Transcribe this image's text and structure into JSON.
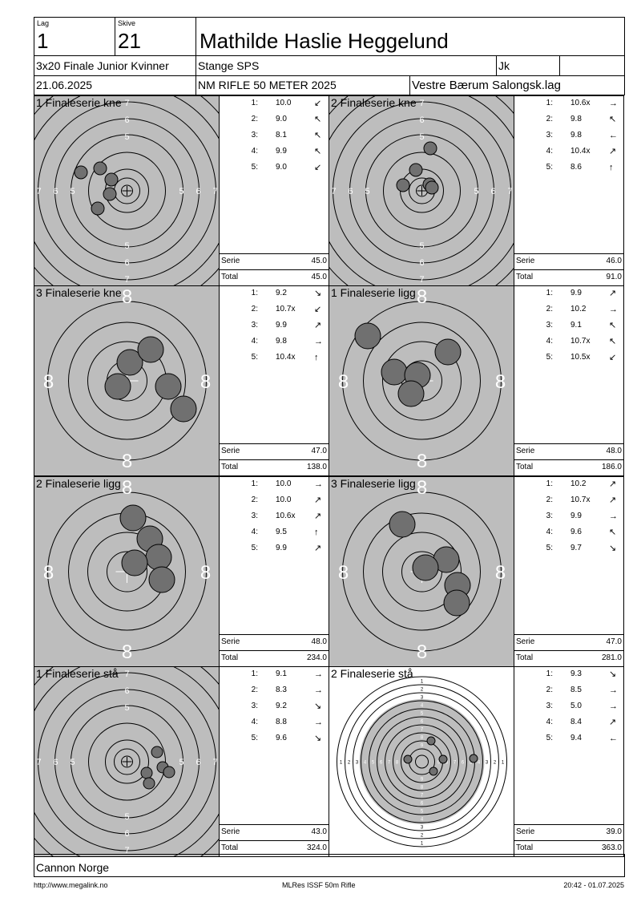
{
  "header": {
    "lag_label": "Lag",
    "lag_value": "1",
    "skive_label": "Skive",
    "skive_value": "21",
    "shooter_name": "Mathilde Haslie Heggelund",
    "event": "3x20 Finale Junior Kvinner",
    "club": "Stange SPS",
    "class": "Jk",
    "date": "21.06.2025",
    "competition": "NM RIFLE 50 METER 2025",
    "organizer": "Vestre Bærum Salongsk.lag"
  },
  "panels": [
    {
      "title": "1 Finaleserie kne",
      "target": "wide",
      "shots": [
        {
          "n": "1:",
          "v": "10.0",
          "a": "↙"
        },
        {
          "n": "2:",
          "v": "9.0",
          "a": "↖"
        },
        {
          "n": "3:",
          "v": "8.1",
          "a": "↖"
        },
        {
          "n": "4:",
          "v": "9.9",
          "a": "↖"
        },
        {
          "n": "5:",
          "v": "9.0",
          "a": "↙"
        }
      ],
      "serie_label": "Serie",
      "serie": "45.0",
      "total_label": "Total",
      "total": "45.0"
    },
    {
      "title": "2 Finaleserie kne",
      "target": "wide",
      "shots": [
        {
          "n": "1:",
          "v": "10.6x",
          "a": "→"
        },
        {
          "n": "2:",
          "v": "9.8",
          "a": "↖"
        },
        {
          "n": "3:",
          "v": "9.8",
          "a": "←"
        },
        {
          "n": "4:",
          "v": "10.4x",
          "a": "↗"
        },
        {
          "n": "5:",
          "v": "8.6",
          "a": "↑"
        }
      ],
      "serie_label": "Serie",
      "serie": "46.0",
      "total_label": "Total",
      "total": "91.0"
    },
    {
      "title": "3 Finaleserie kne",
      "target": "zoom",
      "shots": [
        {
          "n": "1:",
          "v": "9.2",
          "a": "↘"
        },
        {
          "n": "2:",
          "v": "10.7x",
          "a": "↙"
        },
        {
          "n": "3:",
          "v": "9.9",
          "a": "↗"
        },
        {
          "n": "4:",
          "v": "9.8",
          "a": "→"
        },
        {
          "n": "5:",
          "v": "10.4x",
          "a": "↑"
        }
      ],
      "serie_label": "Serie",
      "serie": "47.0",
      "total_label": "Total",
      "total": "138.0"
    },
    {
      "title": "1 Finaleserie ligg",
      "target": "zoom",
      "shots": [
        {
          "n": "1:",
          "v": "9.9",
          "a": "↗"
        },
        {
          "n": "2:",
          "v": "10.2",
          "a": "→"
        },
        {
          "n": "3:",
          "v": "9.1",
          "a": "↖"
        },
        {
          "n": "4:",
          "v": "10.7x",
          "a": "↖"
        },
        {
          "n": "5:",
          "v": "10.5x",
          "a": "↙"
        }
      ],
      "serie_label": "Serie",
      "serie": "48.0",
      "total_label": "Total",
      "total": "186.0"
    },
    {
      "title": "2 Finaleserie ligg",
      "target": "zoom",
      "shots": [
        {
          "n": "1:",
          "v": "10.0",
          "a": "→"
        },
        {
          "n": "2:",
          "v": "10.0",
          "a": "↗"
        },
        {
          "n": "3:",
          "v": "10.6x",
          "a": "↗"
        },
        {
          "n": "4:",
          "v": "9.5",
          "a": "↑"
        },
        {
          "n": "5:",
          "v": "9.9",
          "a": "↗"
        }
      ],
      "serie_label": "Serie",
      "serie": "48.0",
      "total_label": "Total",
      "total": "234.0"
    },
    {
      "title": "3 Finaleserie ligg",
      "target": "zoom",
      "shots": [
        {
          "n": "1:",
          "v": "10.2",
          "a": "↗"
        },
        {
          "n": "2:",
          "v": "10.7x",
          "a": "↗"
        },
        {
          "n": "3:",
          "v": "9.9",
          "a": "→"
        },
        {
          "n": "4:",
          "v": "9.6",
          "a": "↖"
        },
        {
          "n": "5:",
          "v": "9.7",
          "a": "↘"
        }
      ],
      "serie_label": "Serie",
      "serie": "47.0",
      "total_label": "Total",
      "total": "281.0"
    },
    {
      "title": "1 Finaleserie stå",
      "target": "wide",
      "shots": [
        {
          "n": "1:",
          "v": "9.1",
          "a": "→"
        },
        {
          "n": "2:",
          "v": "8.3",
          "a": "→"
        },
        {
          "n": "3:",
          "v": "9.2",
          "a": "↘"
        },
        {
          "n": "4:",
          "v": "8.8",
          "a": "→"
        },
        {
          "n": "5:",
          "v": "9.6",
          "a": "↘"
        }
      ],
      "serie_label": "Serie",
      "serie": "43.0",
      "total_label": "Total",
      "total": "324.0"
    },
    {
      "title": "2 Finaleserie stå",
      "target": "full",
      "shots": [
        {
          "n": "1:",
          "v": "9.3",
          "a": "↘"
        },
        {
          "n": "2:",
          "v": "8.5",
          "a": "→"
        },
        {
          "n": "3:",
          "v": "5.0",
          "a": "→"
        },
        {
          "n": "4:",
          "v": "8.4",
          "a": "↗"
        },
        {
          "n": "5:",
          "v": "9.4",
          "a": "←"
        }
      ],
      "serie_label": "Serie",
      "serie": "39.0",
      "total_label": "Total",
      "total": "363.0"
    }
  ],
  "target_labels": {
    "wide_rings": [
      "5",
      "6",
      "7",
      "8"
    ],
    "zoom_ring": "8",
    "full_rings": [
      "1",
      "2",
      "3",
      "4",
      "5",
      "6",
      "7",
      "8",
      "9"
    ]
  },
  "footer": {
    "sponsor": "Cannon Norge",
    "url": "http://www.megalink.no",
    "software": "MLRes ISSF 50m Rifle",
    "timestamp": "20:42 - 01.07.2025"
  },
  "colors": {
    "target_gray": "#bdbdbd",
    "shot_fill": "#707070",
    "ring_line": "#000000",
    "ring_label": "#ffffff"
  }
}
